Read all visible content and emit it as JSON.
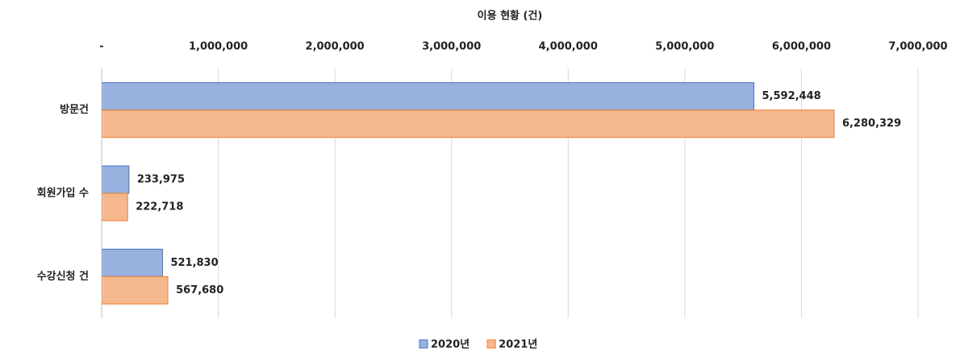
{
  "chart_data": {
    "type": "hbar",
    "title": "이용 현황 (건)",
    "categories": [
      "방문건",
      "회원가입 수",
      "수강신청 건"
    ],
    "series": [
      {
        "name": "2020년",
        "color": "#4472c4",
        "values": [
          5592448,
          233975,
          521830
        ],
        "value_labels": [
          "5,592,448",
          "233,975",
          "521,830"
        ]
      },
      {
        "name": "2021년",
        "color": "#ed7d31",
        "values": [
          6280329,
          222718,
          567680
        ],
        "value_labels": [
          "6,280,329",
          "222,718",
          "567,680"
        ]
      }
    ],
    "xlim": [
      0,
      7000000
    ],
    "xticks": [
      {
        "value": 0,
        "label": "-"
      },
      {
        "value": 1000000,
        "label": "1,000,000"
      },
      {
        "value": 2000000,
        "label": "2,000,000"
      },
      {
        "value": 3000000,
        "label": "3,000,000"
      },
      {
        "value": 4000000,
        "label": "4,000,000"
      },
      {
        "value": 5000000,
        "label": "5,000,000"
      },
      {
        "value": 6000000,
        "label": "6,000,000"
      },
      {
        "value": 7000000,
        "label": "7,000,000"
      }
    ],
    "grid": true,
    "legend": "bottom"
  }
}
